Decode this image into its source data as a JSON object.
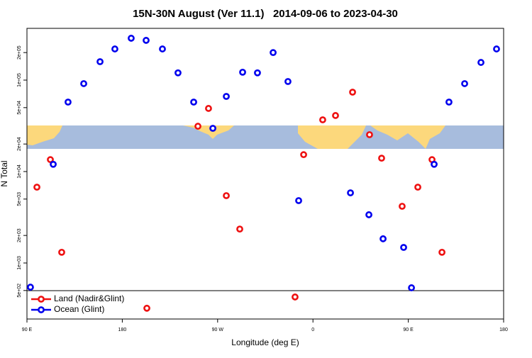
{
  "chart_data": {
    "type": "scatter",
    "title": "15N-30N August (Ver 11.1)   2014-09-06 to 2023-04-30",
    "x_label": "Longitude (deg E)",
    "y_label": "N Total",
    "xlim": [
      90,
      540
    ],
    "xticks": [
      {
        "value": 90,
        "label": "90 E"
      },
      {
        "value": 180,
        "label": "180"
      },
      {
        "value": 270,
        "label": "90 W"
      },
      {
        "value": 360,
        "label": "0"
      },
      {
        "value": 450,
        "label": "90 E"
      },
      {
        "value": 540,
        "label": "180"
      }
    ],
    "ylim": [
      244,
      368000
    ],
    "log_y": true,
    "yticks": [
      {
        "value": 500,
        "label": "5e+02"
      },
      {
        "value": 1000,
        "label": "1e+03"
      },
      {
        "value": 2000,
        "label": "2e+03"
      },
      {
        "value": 5000,
        "label": "5e+03"
      },
      {
        "value": 10000,
        "label": "1e+04"
      },
      {
        "value": 20000,
        "label": "2e+04"
      },
      {
        "value": 50000,
        "label": "5e+04"
      },
      {
        "value": 100000,
        "label": "1e+05"
      },
      {
        "value": 200000,
        "label": "2e+05"
      }
    ],
    "legend": "bottom-left",
    "series": [
      {
        "name": "Land (Nadir&Glint)",
        "color": "#ee1111",
        "x": [
          99.4,
          112.1,
          122.8,
          203.2,
          251.4,
          261.4,
          278.2,
          290.9,
          343.1,
          351.2,
          369.2,
          381.3,
          397.4,
          413.4,
          424.8,
          444.2,
          459.0,
          472.4,
          481.8
        ],
        "values": [
          6750,
          13500,
          1310,
          320,
          31300,
          49000,
          5450,
          2350,
          425,
          15300,
          36800,
          41000,
          73800,
          25300,
          14000,
          4170,
          6750,
          13500,
          1310
        ]
      },
      {
        "name": "Ocean (Glint)",
        "color": "#0000ee",
        "x": [
          93.3,
          114.8,
          128.8,
          143.6,
          159.0,
          173.0,
          188.4,
          202.5,
          217.9,
          232.6,
          247.4,
          265.5,
          278.2,
          293.6,
          307.6,
          322.4,
          336.4,
          346.5,
          395.4,
          412.8,
          426.2,
          445.6,
          453.0,
          474.4,
          488.4,
          503.2,
          518.6,
          533.3
        ],
        "values": [
          544,
          12000,
          57500,
          91500,
          159000,
          219000,
          287000,
          272000,
          219000,
          120000,
          57500,
          29700,
          66300,
          122000,
          120000,
          200000,
          96500,
          4810,
          5850,
          3370,
          1840,
          1480,
          536,
          12000,
          57500,
          91500,
          156000,
          219000
        ]
      }
    ]
  }
}
